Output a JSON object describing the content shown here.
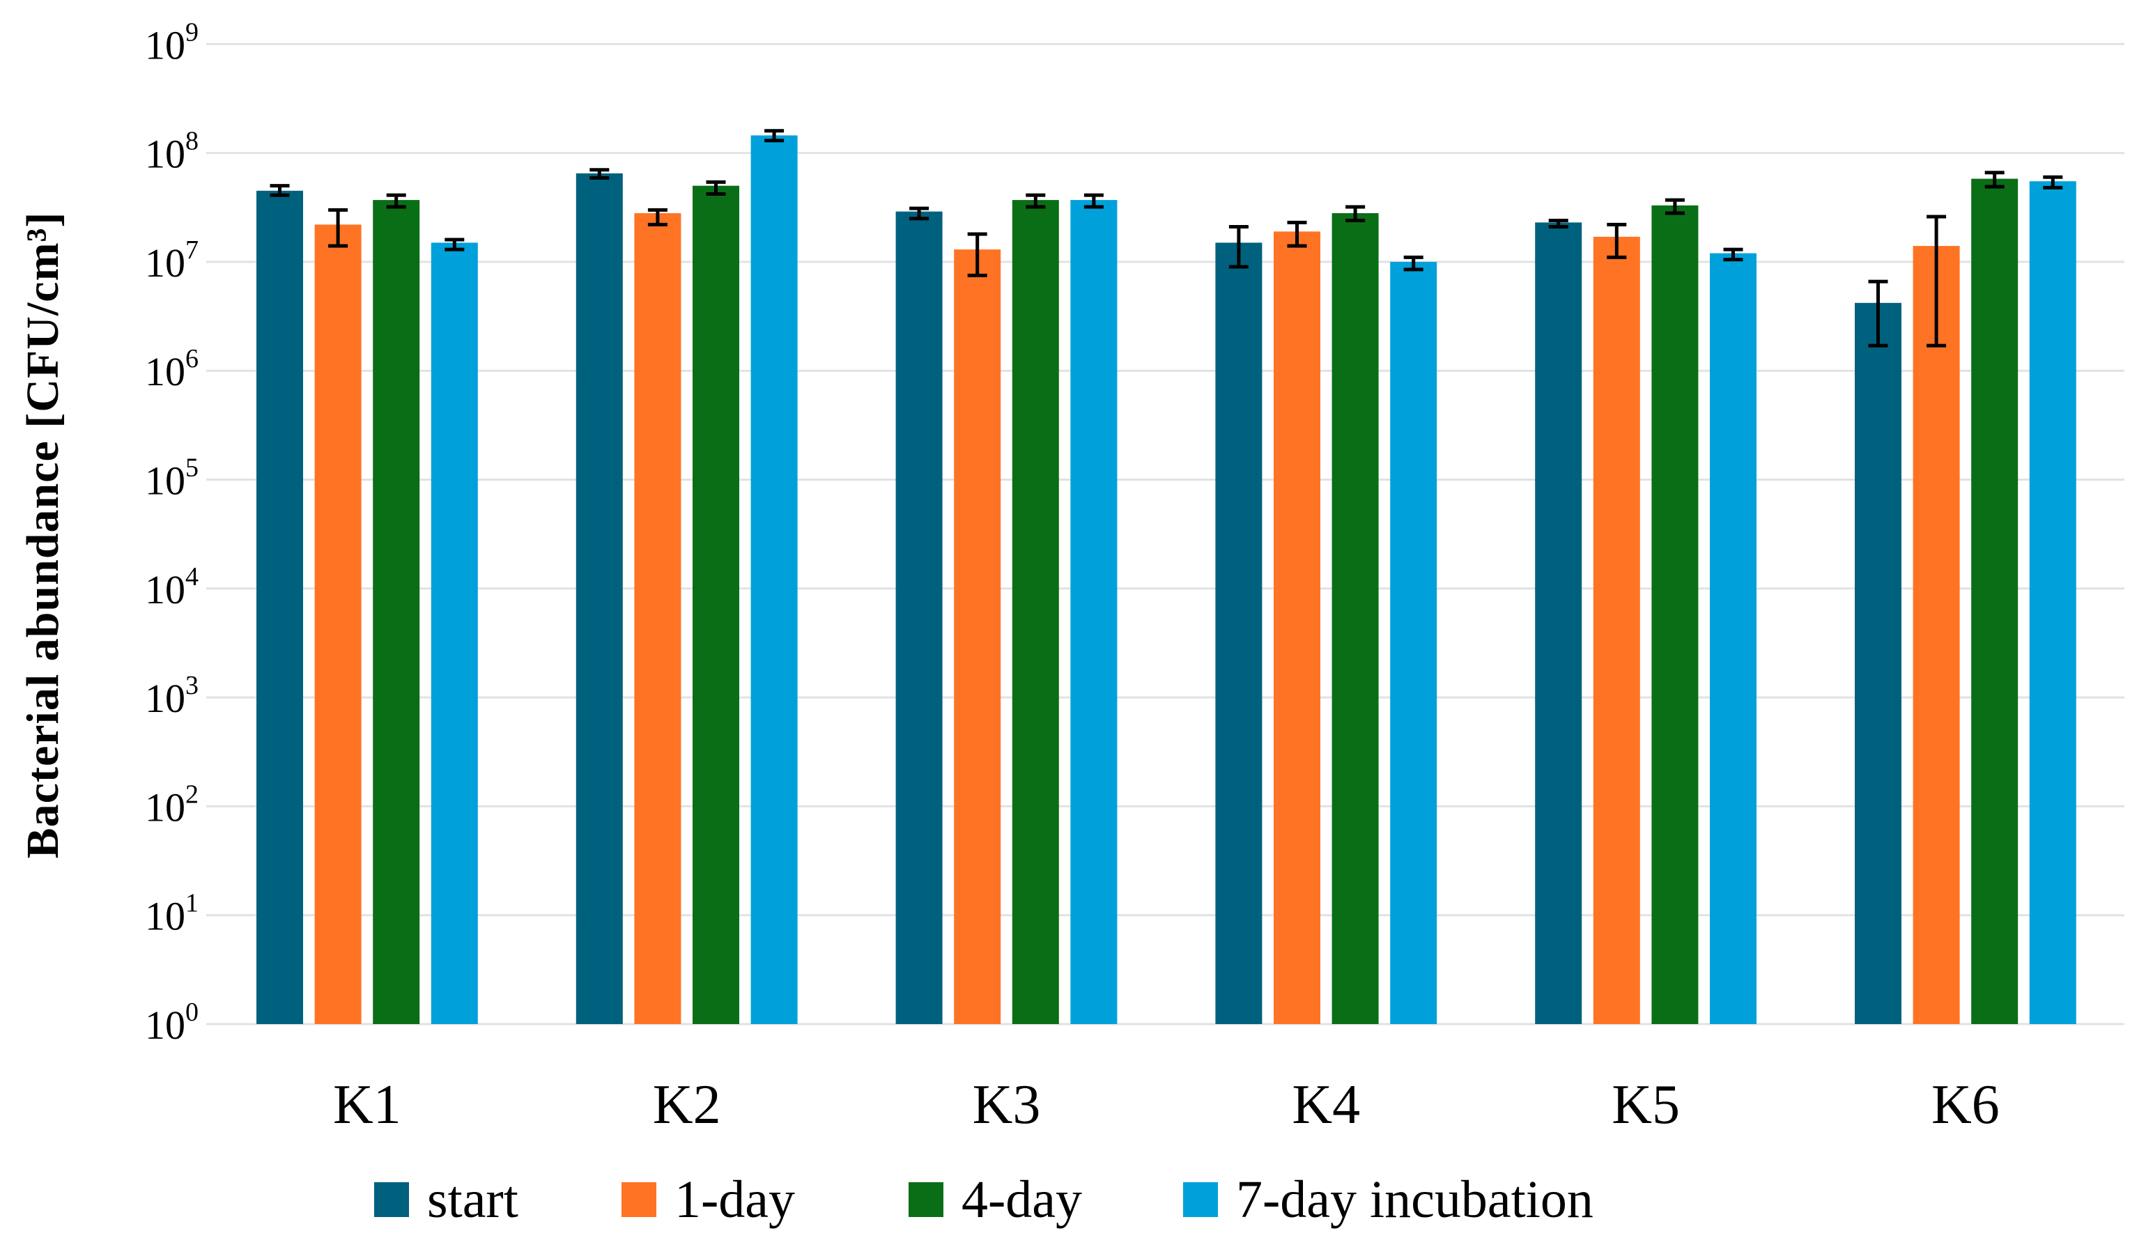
{
  "chart_data": {
    "type": "bar",
    "title": "",
    "xlabel": "",
    "ylabel": "Bacterial abundance [CFU/cm³]",
    "y_scale": "log",
    "ylim": [
      1,
      1000000000
    ],
    "y_tick_exponents": [
      0,
      1,
      2,
      3,
      4,
      5,
      6,
      7,
      8,
      9
    ],
    "y_tick_base": "10",
    "grid": true,
    "legend_position": "bottom",
    "categories": [
      "K1",
      "K2",
      "K3",
      "K4",
      "K5",
      "K6"
    ],
    "series": [
      {
        "name": "start",
        "color": "#00617f",
        "values": [
          45000000.0,
          65000000.0,
          29000000.0,
          15000000.0,
          23000000.0,
          4200000.0
        ],
        "err_up": [
          50000000.0,
          70000000.0,
          31000000.0,
          21000000.0,
          24000000.0,
          6600000.0
        ],
        "err_down": [
          41000000.0,
          59000000.0,
          25000000.0,
          9000000.0,
          21000000.0,
          1700000.0
        ]
      },
      {
        "name": "1-day",
        "color": "#ff7324",
        "values": [
          22000000.0,
          28000000.0,
          13000000.0,
          19000000.0,
          17000000.0,
          14000000.0
        ],
        "err_up": [
          30000000.0,
          30000000.0,
          18000000.0,
          23000000.0,
          22000000.0,
          26000000.0
        ],
        "err_down": [
          14000000.0,
          22000000.0,
          7500000.0,
          14000000.0,
          11000000.0,
          1700000.0
        ]
      },
      {
        "name": "4-day",
        "color": "#0a6e17",
        "values": [
          37000000.0,
          50000000.0,
          37000000.0,
          28000000.0,
          33000000.0,
          58000000.0
        ],
        "err_up": [
          41000000.0,
          54000000.0,
          41000000.0,
          32000000.0,
          37000000.0,
          66000000.0
        ],
        "err_down": [
          32000000.0,
          42000000.0,
          32000000.0,
          24000000.0,
          28000000.0,
          49000000.0
        ]
      },
      {
        "name": "7-day incubation",
        "color": "#00a1da",
        "values": [
          15000000.0,
          145000000.0,
          37000000.0,
          10000000.0,
          12000000.0,
          55000000.0
        ],
        "err_up": [
          16000000.0,
          160000000.0,
          41000000.0,
          11000000.0,
          13000000.0,
          60000000.0
        ],
        "err_down": [
          13000000.0,
          130000000.0,
          32000000.0,
          8500000.0,
          10500000.0,
          48000000.0
        ]
      }
    ]
  }
}
